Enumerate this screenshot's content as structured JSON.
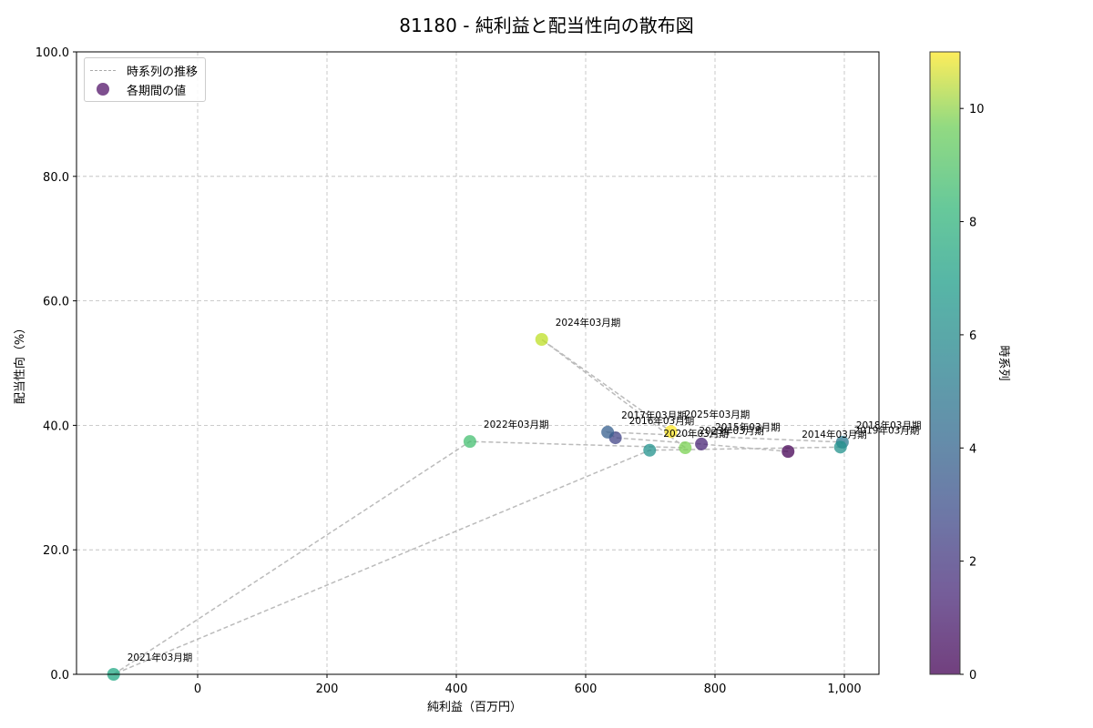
{
  "chart_data": {
    "type": "scatter",
    "title": "81180 - 純利益と配当性向の散布図",
    "xlabel": "純利益（百万円）",
    "ylabel": "配当性向（%）",
    "colorbar_label": "時系列",
    "xlim": [
      -165,
      1055
    ],
    "ylim": [
      0,
      100
    ],
    "x_ticks": [
      "0",
      "200",
      "400",
      "600",
      "800",
      "1,000"
    ],
    "y_ticks": [
      "0.0",
      "20.0",
      "40.0",
      "60.0",
      "80.0",
      "100.0"
    ],
    "colorbar_ticks": [
      "0",
      "2",
      "4",
      "6",
      "8",
      "10"
    ],
    "colorbar_range": [
      0,
      11
    ],
    "grid": true,
    "legend": {
      "position": "upper left",
      "entries": [
        "時系列の推移",
        "各期間の値"
      ]
    },
    "points": [
      {
        "label": "2014年03月期",
        "x": 913,
        "y": 35.8,
        "t": 0
      },
      {
        "label": "2015年03月期",
        "x": 779,
        "y": 37.0,
        "t": 1
      },
      {
        "label": "2016年03月期",
        "x": 646,
        "y": 38.0,
        "t": 2
      },
      {
        "label": "2017年03月期",
        "x": 634,
        "y": 38.9,
        "t": 3
      },
      {
        "label": "2018年03月期",
        "x": 997,
        "y": 37.3,
        "t": 4
      },
      {
        "label": "2019年03月期",
        "x": 994,
        "y": 36.5,
        "t": 5
      },
      {
        "label": "2020年03月期",
        "x": 699,
        "y": 36.0,
        "t": 6
      },
      {
        "label": "2021年03月期",
        "x": -130,
        "y": 0.0,
        "t": 7
      },
      {
        "label": "2022年03月期",
        "x": 421,
        "y": 37.4,
        "t": 8
      },
      {
        "label": "2023年03月期",
        "x": 754,
        "y": 36.4,
        "t": 9
      },
      {
        "label": "2024年03月期",
        "x": 532,
        "y": 53.8,
        "t": 10
      },
      {
        "label": "2025年03月期",
        "x": 732,
        "y": 39.0,
        "t": 11
      }
    ]
  }
}
